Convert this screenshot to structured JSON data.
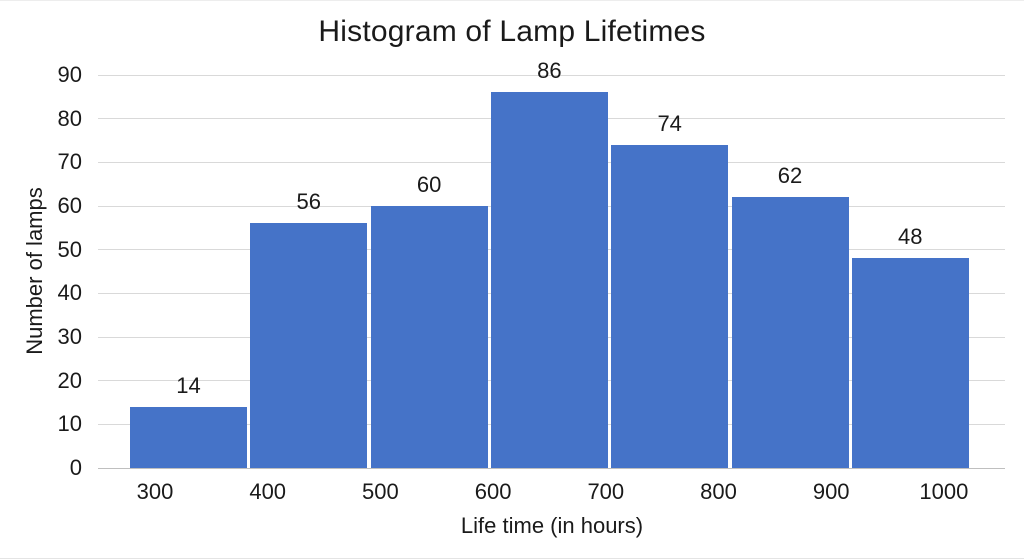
{
  "chart_data": {
    "type": "bar",
    "subtype": "histogram",
    "title": "Histogram of Lamp Lifetimes",
    "xlabel": "Life time (in hours)",
    "ylabel": "Number of lamps",
    "bin_edges": [
      300,
      400,
      500,
      600,
      700,
      800,
      900,
      1000
    ],
    "x_tick_labels": [
      "300",
      "400",
      "500",
      "600",
      "700",
      "800",
      "900",
      "1000"
    ],
    "values": [
      14,
      56,
      60,
      86,
      74,
      62,
      48
    ],
    "data_labels": [
      "14",
      "56",
      "60",
      "86",
      "74",
      "62",
      "48"
    ],
    "y_tick_labels": [
      "0",
      "10",
      "20",
      "30",
      "40",
      "50",
      "60",
      "70",
      "80",
      "90"
    ],
    "ylim": [
      0,
      90
    ],
    "ytick_step": 10,
    "grid": "horizontal",
    "legend": "none",
    "colors": {
      "bar": "#4573C8",
      "gridline": "#D9D9D9",
      "axis_line": "#BFBFBF",
      "text": "#1A1A1A",
      "background": "#FFFFFF"
    }
  }
}
